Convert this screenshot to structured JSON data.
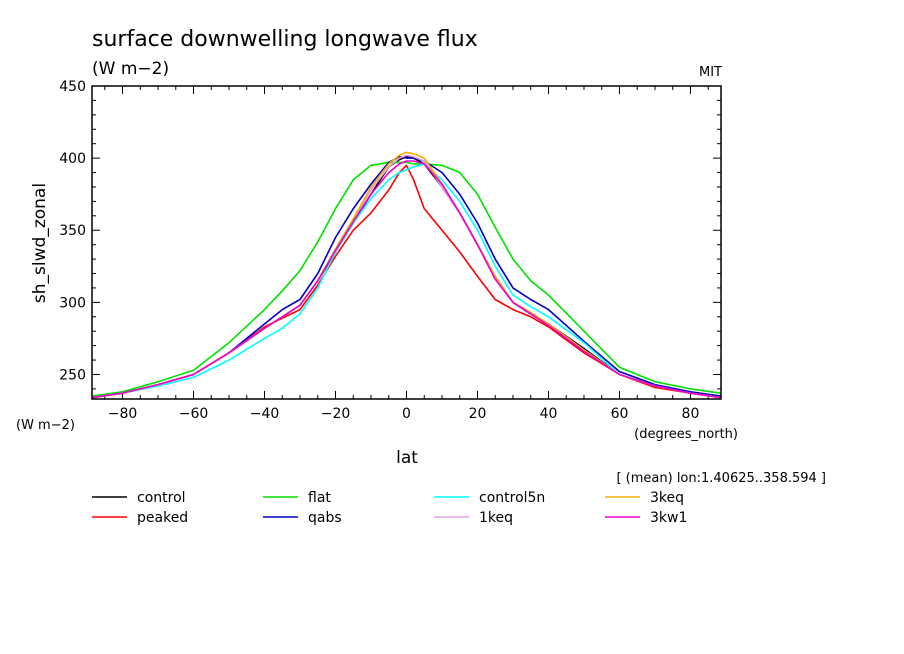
{
  "chart_data": {
    "type": "line",
    "title": "surface downwelling longwave flux",
    "title_units": "(W m−2)",
    "institution": "MIT",
    "ylabel": "sh_slwd_zonal",
    "y_units": "(W m−2)",
    "xlabel": "lat",
    "x_units": "(degrees_north)",
    "subset_note": "[ (mean) lon:1.40625..358.594 ]",
    "xlim": [
      -88.6,
      88.6
    ],
    "ylim": [
      233,
      450
    ],
    "x_ticks": [
      -80,
      -60,
      -40,
      -20,
      0,
      20,
      40,
      60,
      80
    ],
    "y_ticks": [
      250,
      300,
      350,
      400,
      450
    ],
    "x": [
      -88.6,
      -80,
      -70,
      -60,
      -50,
      -40,
      -35,
      -30,
      -25,
      -20,
      -15,
      -10,
      -5,
      -2,
      0,
      2,
      5,
      10,
      15,
      20,
      25,
      30,
      35,
      40,
      50,
      60,
      70,
      80,
      88.6
    ],
    "series": [
      {
        "name": "control",
        "color": "#000000",
        "values": [
          234,
          237,
          243,
          250,
          265,
          282,
          290,
          298,
          315,
          335,
          355,
          375,
          394,
          399,
          401,
          400,
          396,
          380,
          362,
          340,
          318,
          300,
          292,
          285,
          268,
          250,
          242,
          237,
          234
        ]
      },
      {
        "name": "peaked",
        "color": "#ff0000",
        "values": [
          234,
          237,
          243,
          250,
          265,
          283,
          289,
          295,
          312,
          332,
          350,
          362,
          378,
          390,
          395,
          385,
          365,
          350,
          335,
          318,
          302,
          295,
          290,
          283,
          265,
          250,
          241,
          237,
          234
        ]
      },
      {
        "name": "flat",
        "color": "#00e000",
        "values": [
          235,
          238,
          245,
          253,
          272,
          295,
          308,
          322,
          342,
          365,
          385,
          395,
          397,
          397,
          397,
          396,
          396,
          395,
          390,
          375,
          352,
          330,
          315,
          305,
          280,
          255,
          245,
          240,
          237
        ]
      },
      {
        "name": "qabs",
        "color": "#0000c0",
        "values": [
          234,
          237,
          243,
          250,
          265,
          285,
          295,
          302,
          320,
          345,
          365,
          382,
          397,
          401,
          400,
          400,
          398,
          390,
          375,
          355,
          330,
          310,
          302,
          295,
          273,
          252,
          243,
          238,
          235
        ]
      },
      {
        "name": "control5n",
        "color": "#00ffff",
        "values": [
          234,
          237,
          242,
          248,
          260,
          275,
          282,
          292,
          310,
          335,
          355,
          372,
          385,
          390,
          392,
          394,
          396,
          385,
          370,
          350,
          325,
          305,
          297,
          290,
          272,
          250,
          242,
          237,
          234
        ]
      },
      {
        "name": "1keq",
        "color": "#e8a0e0",
        "values": [
          234,
          237,
          243,
          250,
          265,
          282,
          290,
          298,
          315,
          337,
          357,
          378,
          394,
          400,
          402,
          401,
          398,
          380,
          362,
          340,
          318,
          300,
          293,
          285,
          267,
          250,
          242,
          237,
          234
        ]
      },
      {
        "name": "3keq",
        "color": "#f0b000",
        "values": [
          234,
          237,
          243,
          250,
          265,
          282,
          290,
          298,
          315,
          337,
          358,
          380,
          396,
          402,
          404,
          403,
          400,
          382,
          362,
          340,
          318,
          300,
          293,
          285,
          267,
          250,
          242,
          237,
          234
        ]
      },
      {
        "name": "3kw1",
        "color": "#f000d0",
        "values": [
          234,
          237,
          243,
          250,
          265,
          282,
          290,
          298,
          315,
          336,
          356,
          375,
          390,
          396,
          398,
          398,
          396,
          382,
          362,
          340,
          316,
          300,
          292,
          284,
          266,
          250,
          242,
          237,
          234
        ]
      }
    ]
  }
}
